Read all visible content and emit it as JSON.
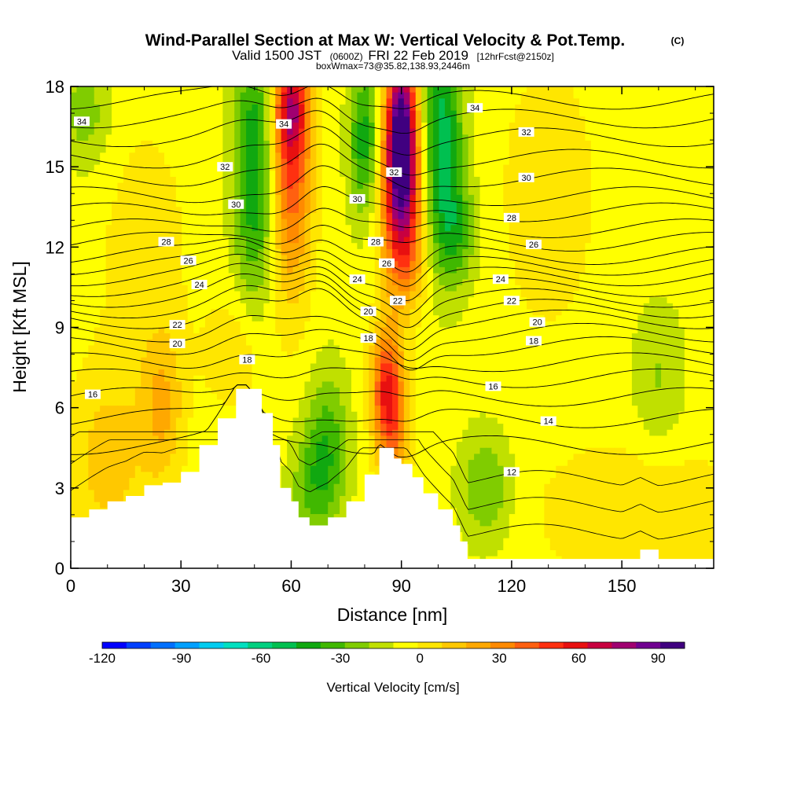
{
  "chart_data": {
    "type": "heatmap",
    "title": "Wind-Parallel Section at Max W: Vertical Velocity & Pot.Temp.",
    "title_unit": "(C)",
    "subtitle_valid": "Valid 1500 JST",
    "subtitle_utc": "(0600Z)",
    "subtitle_date": "FRI 22 Feb 2019",
    "subtitle_fcst": "[12hrFcst@2150z]",
    "subtitle_box": "boxWmax=73@35.82,138.93,2446m",
    "xlabel": "Distance [nm]",
    "ylabel": "Height [Kft MSL]",
    "xlim": [
      0,
      175
    ],
    "ylim": [
      0,
      18
    ],
    "x_ticks": [
      "0",
      "30",
      "60",
      "90",
      "120",
      "150"
    ],
    "y_ticks": [
      "0",
      "3",
      "6",
      "9",
      "12",
      "15",
      "18"
    ],
    "colorbar": {
      "label": "Vertical Velocity [cm/s]",
      "tick_labels": [
        "-120",
        "-90",
        "-60",
        "-30",
        "0",
        "30",
        "60",
        "90"
      ],
      "range": [
        -120,
        100
      ],
      "step": 10,
      "colors": [
        "#0000ff",
        "#0040ff",
        "#0070ff",
        "#00a0ff",
        "#00ccf0",
        "#00e0c0",
        "#00d080",
        "#00c050",
        "#10a810",
        "#40b800",
        "#80cc00",
        "#c0e000",
        "#ffff00",
        "#ffe600",
        "#ffc800",
        "#ffa800",
        "#ff8a00",
        "#ff6010",
        "#ff3010",
        "#e81010",
        "#c80040",
        "#a00070",
        "#700090",
        "#400080"
      ]
    },
    "terrain": [
      [
        0,
        1.9
      ],
      [
        5,
        2.2
      ],
      [
        10,
        2.5
      ],
      [
        15,
        2.7
      ],
      [
        20,
        3.1
      ],
      [
        25,
        3.2
      ],
      [
        30,
        3.6
      ],
      [
        35,
        4.6
      ],
      [
        40,
        5.6
      ],
      [
        45,
        6.7
      ],
      [
        48,
        6.7
      ],
      [
        52,
        5.8
      ],
      [
        55,
        4.6
      ],
      [
        57,
        3.0
      ],
      [
        60,
        2.5
      ],
      [
        62,
        1.9
      ],
      [
        65,
        1.6
      ],
      [
        70,
        1.9
      ],
      [
        75,
        2.5
      ],
      [
        80,
        3.5
      ],
      [
        84,
        4.5
      ],
      [
        88,
        4.1
      ],
      [
        90,
        3.9
      ],
      [
        93,
        3.4
      ],
      [
        96,
        2.8
      ],
      [
        100,
        2.2
      ],
      [
        104,
        1.6
      ],
      [
        106,
        1.0
      ],
      [
        108,
        0.35
      ],
      [
        150,
        0.35
      ],
      [
        155,
        0.7
      ],
      [
        160,
        0.35
      ],
      [
        175,
        0.35
      ]
    ],
    "w_features": [
      {
        "x": 60,
        "y": 15.5,
        "w": 60,
        "sx": 4,
        "sy": 3.5
      },
      {
        "x": 60,
        "y": 17.2,
        "w": 40,
        "sx": 3,
        "sy": 1.2
      },
      {
        "x": 90,
        "y": 16.5,
        "w": 100,
        "sx": 3,
        "sy": 2.2
      },
      {
        "x": 90,
        "y": 14.0,
        "w": 60,
        "sx": 4,
        "sy": 2.2
      },
      {
        "x": 91,
        "y": 11.5,
        "w": 25,
        "sx": 4,
        "sy": 1.5
      },
      {
        "x": 86,
        "y": 6.8,
        "w": 60,
        "sx": 3,
        "sy": 1.6
      },
      {
        "x": 88,
        "y": 5.0,
        "w": 30,
        "sx": 3,
        "sy": 1.5
      },
      {
        "x": 50,
        "y": 15.0,
        "w": -45,
        "sx": 4,
        "sy": 3.5
      },
      {
        "x": 80,
        "y": 16.0,
        "w": -40,
        "sx": 3,
        "sy": 2.0
      },
      {
        "x": 101,
        "y": 16.0,
        "w": -50,
        "sx": 4,
        "sy": 3.0
      },
      {
        "x": 105,
        "y": 12.5,
        "w": -25,
        "sx": 4,
        "sy": 1.5
      },
      {
        "x": 70,
        "y": 4.5,
        "w": -30,
        "sx": 4,
        "sy": 2.0
      },
      {
        "x": 65,
        "y": 3.0,
        "w": -20,
        "sx": 4,
        "sy": 1.5
      },
      {
        "x": 113,
        "y": 3.0,
        "w": -25,
        "sx": 5,
        "sy": 1.5
      },
      {
        "x": 160,
        "y": 7.0,
        "w": -15,
        "sx": 5,
        "sy": 2.0
      },
      {
        "x": 4,
        "y": 17.0,
        "w": -20,
        "sx": 5,
        "sy": 1.5
      },
      {
        "x": 25,
        "y": 6.0,
        "w": 25,
        "sx": 4,
        "sy": 2.0
      },
      {
        "x": 10,
        "y": 4.0,
        "w": 20,
        "sx": 8,
        "sy": 2.5
      },
      {
        "x": 45,
        "y": 8.0,
        "w": 15,
        "sx": 6,
        "sy": 1.5
      },
      {
        "x": 155,
        "y": 2.0,
        "w": 15,
        "sx": 20,
        "sy": 2.0
      },
      {
        "x": 130,
        "y": 14.0,
        "w": 12,
        "sx": 10,
        "sy": 4.0
      },
      {
        "x": 20,
        "y": 12.0,
        "w": 10,
        "sx": 10,
        "sy": 4.0
      }
    ],
    "theta_contours": {
      "levels": [
        14,
        15,
        16,
        17,
        18,
        19,
        20,
        21,
        22,
        23,
        24,
        25,
        26,
        27,
        28,
        29,
        30,
        31,
        32,
        33,
        34,
        35,
        36
      ],
      "base_heights": [
        4.6,
        5.6,
        6.4,
        7.1,
        7.7,
        8.3,
        8.8,
        9.3,
        9.7,
        10.1,
        10.5,
        10.9,
        11.3,
        11.7,
        12.2,
        12.7,
        13.3,
        13.9,
        14.6,
        15.3,
        16.1,
        16.8,
        17.5
      ]
    },
    "contour_labels": [
      {
        "text": "34",
        "x": 3,
        "y": 16.7
      },
      {
        "text": "32",
        "x": 42,
        "y": 15.0
      },
      {
        "text": "30",
        "x": 45,
        "y": 13.6
      },
      {
        "text": "28",
        "x": 26,
        "y": 12.2
      },
      {
        "text": "26",
        "x": 32,
        "y": 11.5
      },
      {
        "text": "24",
        "x": 35,
        "y": 10.6
      },
      {
        "text": "22",
        "x": 29,
        "y": 9.1
      },
      {
        "text": "20",
        "x": 29,
        "y": 8.4
      },
      {
        "text": "18",
        "x": 48,
        "y": 7.8
      },
      {
        "text": "16",
        "x": 6,
        "y": 6.5
      },
      {
        "text": "34",
        "x": 58,
        "y": 16.6
      },
      {
        "text": "32",
        "x": 88,
        "y": 14.8
      },
      {
        "text": "30",
        "x": 78,
        "y": 13.8
      },
      {
        "text": "28",
        "x": 83,
        "y": 12.2
      },
      {
        "text": "26",
        "x": 86,
        "y": 11.4
      },
      {
        "text": "24",
        "x": 78,
        "y": 10.8
      },
      {
        "text": "22",
        "x": 89,
        "y": 10.0
      },
      {
        "text": "20",
        "x": 81,
        "y": 9.6
      },
      {
        "text": "18",
        "x": 81,
        "y": 8.6
      },
      {
        "text": "34",
        "x": 110,
        "y": 17.2
      },
      {
        "text": "32",
        "x": 124,
        "y": 16.3
      },
      {
        "text": "30",
        "x": 124,
        "y": 14.6
      },
      {
        "text": "28",
        "x": 120,
        "y": 13.1
      },
      {
        "text": "26",
        "x": 126,
        "y": 12.1
      },
      {
        "text": "24",
        "x": 117,
        "y": 10.8
      },
      {
        "text": "22",
        "x": 120,
        "y": 10.0
      },
      {
        "text": "20",
        "x": 127,
        "y": 9.2
      },
      {
        "text": "18",
        "x": 126,
        "y": 8.5
      },
      {
        "text": "16",
        "x": 115,
        "y": 6.8
      },
      {
        "text": "14",
        "x": 130,
        "y": 5.5
      },
      {
        "text": "12",
        "x": 120,
        "y": 3.6
      }
    ]
  }
}
